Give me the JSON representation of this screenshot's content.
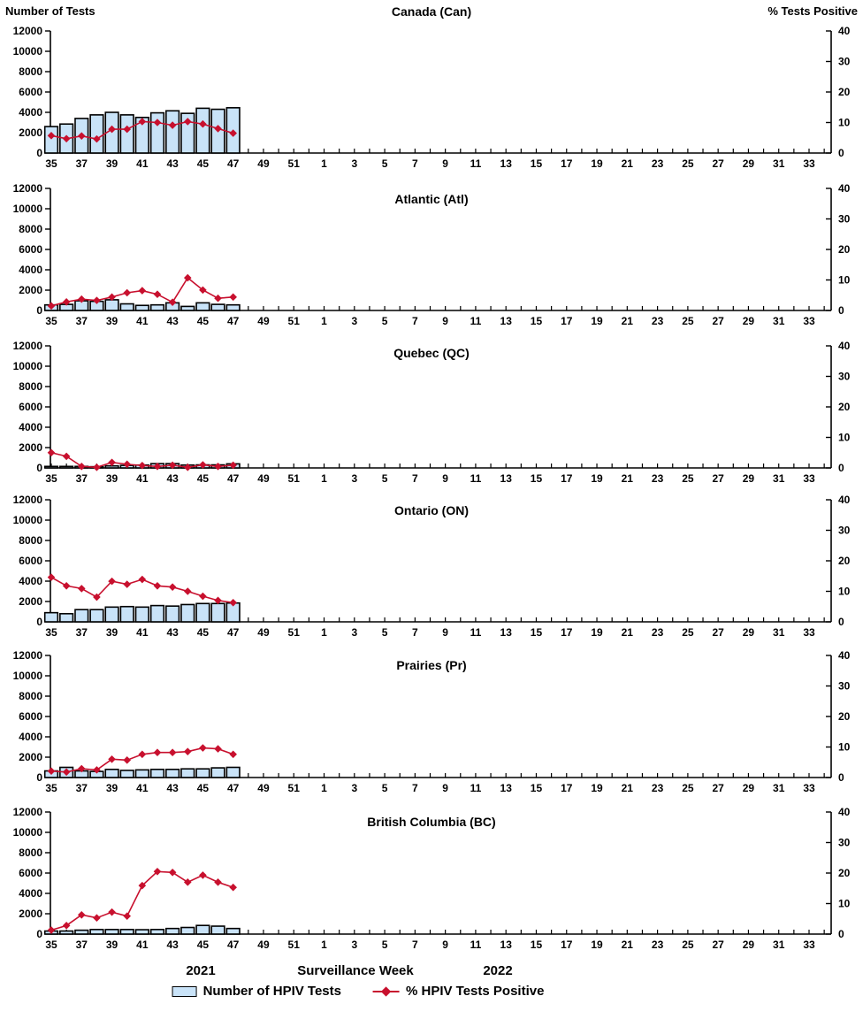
{
  "header": {
    "left_axis_label": "Number of Tests",
    "right_axis_label": "% Tests Positive"
  },
  "footer": {
    "year_left": "2021",
    "x_axis_label": "Surveillance Week",
    "year_right": "2022"
  },
  "legend": {
    "bars_label": "Number of HPIV Tests",
    "line_label": "% HPIV Tests Positive"
  },
  "colors": {
    "bar_fill": "#C9E3F8",
    "bar_stroke": "#000000",
    "line": "#C8102E",
    "axis": "#000000"
  },
  "axes": {
    "left_ylim": [
      0,
      12000
    ],
    "left_yticks": [
      "0",
      "2000",
      "4000",
      "6000",
      "8000",
      "10000",
      "12000"
    ],
    "right_ylim": [
      0,
      40
    ],
    "right_yticks": [
      "0",
      "10",
      "20",
      "30",
      "40"
    ],
    "x_tick_labels": [
      "35",
      "37",
      "39",
      "41",
      "43",
      "45",
      "47",
      "49",
      "51",
      "1",
      "3",
      "5",
      "7",
      "9",
      "11",
      "13",
      "15",
      "17",
      "19",
      "21",
      "23",
      "25",
      "27",
      "29",
      "31",
      "33"
    ],
    "weeks_total": 52,
    "grid": false
  },
  "chart_data": [
    {
      "type": "bar+line",
      "title": "Canada (Can)",
      "categories": [
        35,
        36,
        37,
        38,
        39,
        40,
        41,
        42,
        43,
        44,
        45,
        46,
        47
      ],
      "series": [
        {
          "name": "Number of HPIV Tests",
          "type": "bar",
          "axis": "left",
          "values": [
            2600,
            2850,
            3400,
            3750,
            4000,
            3750,
            3500,
            3950,
            4150,
            3900,
            4400,
            4300,
            4450
          ]
        },
        {
          "name": "% HPIV Tests Positive",
          "type": "line",
          "axis": "right",
          "values": [
            5.7,
            4.7,
            5.6,
            4.6,
            7.8,
            7.8,
            10.3,
            10.0,
            9.1,
            10.3,
            9.5,
            8.0,
            6.5
          ]
        }
      ]
    },
    {
      "type": "bar+line",
      "title": "Atlantic (Atl)",
      "categories": [
        35,
        36,
        37,
        38,
        39,
        40,
        41,
        42,
        43,
        44,
        45,
        46,
        47
      ],
      "series": [
        {
          "name": "Number of HPIV Tests",
          "type": "bar",
          "axis": "left",
          "values": [
            550,
            600,
            950,
            900,
            1050,
            650,
            500,
            550,
            750,
            400,
            750,
            600,
            550
          ]
        },
        {
          "name": "% HPIV Tests Positive",
          "type": "line",
          "axis": "right",
          "values": [
            1.5,
            2.8,
            3.7,
            3.3,
            4.4,
            5.8,
            6.5,
            5.3,
            2.7,
            10.7,
            6.7,
            4.0,
            4.4
          ]
        }
      ]
    },
    {
      "type": "bar+line",
      "title": "Quebec (QC)",
      "categories": [
        35,
        36,
        37,
        38,
        39,
        40,
        41,
        42,
        43,
        44,
        45,
        46,
        47
      ],
      "series": [
        {
          "name": "Number of HPIV Tests",
          "type": "bar",
          "axis": "left",
          "values": [
            150,
            150,
            150,
            120,
            200,
            250,
            280,
            420,
            420,
            280,
            300,
            300,
            400
          ]
        },
        {
          "name": "% HPIV Tests Positive",
          "type": "line",
          "axis": "right",
          "values": [
            5.0,
            3.8,
            0.5,
            0.2,
            1.8,
            1.2,
            0.8,
            0.5,
            0.9,
            0.2,
            1.0,
            0.5,
            0.9
          ]
        }
      ]
    },
    {
      "type": "bar+line",
      "title": "Ontario (ON)",
      "categories": [
        35,
        36,
        37,
        38,
        39,
        40,
        41,
        42,
        43,
        44,
        45,
        46,
        47
      ],
      "series": [
        {
          "name": "Number of HPIV Tests",
          "type": "bar",
          "axis": "left",
          "values": [
            900,
            800,
            1200,
            1200,
            1450,
            1500,
            1450,
            1600,
            1550,
            1700,
            1800,
            1800,
            1850
          ]
        },
        {
          "name": "% HPIV Tests Positive",
          "type": "line",
          "axis": "right",
          "values": [
            14.6,
            11.8,
            10.9,
            8.1,
            13.3,
            12.3,
            13.9,
            11.8,
            11.4,
            10.0,
            8.4,
            7.0,
            6.3
          ]
        }
      ]
    },
    {
      "type": "bar+line",
      "title": "Prairies (Pr)",
      "categories": [
        35,
        36,
        37,
        38,
        39,
        40,
        41,
        42,
        43,
        44,
        45,
        46,
        47
      ],
      "series": [
        {
          "name": "Number of HPIV Tests",
          "type": "bar",
          "axis": "left",
          "values": [
            650,
            1000,
            650,
            600,
            800,
            700,
            750,
            800,
            800,
            850,
            850,
            950,
            1000
          ]
        },
        {
          "name": "% HPIV Tests Positive",
          "type": "line",
          "axis": "right",
          "values": [
            2.1,
            1.8,
            2.9,
            2.5,
            6.0,
            5.7,
            7.6,
            8.2,
            8.2,
            8.5,
            9.7,
            9.4,
            7.6
          ]
        }
      ]
    },
    {
      "type": "bar+line",
      "title": "British Columbia (BC)",
      "categories": [
        35,
        36,
        37,
        38,
        39,
        40,
        41,
        42,
        43,
        44,
        45,
        46,
        47
      ],
      "series": [
        {
          "name": "Number of HPIV Tests",
          "type": "bar",
          "axis": "left",
          "values": [
            300,
            300,
            380,
            450,
            450,
            450,
            430,
            450,
            550,
            650,
            850,
            780,
            550
          ]
        },
        {
          "name": "% HPIV Tests Positive",
          "type": "line",
          "axis": "right",
          "values": [
            1.3,
            2.8,
            6.3,
            5.3,
            7.2,
            5.9,
            15.9,
            20.5,
            20.2,
            17.0,
            19.3,
            17.0,
            15.3
          ]
        }
      ]
    }
  ]
}
